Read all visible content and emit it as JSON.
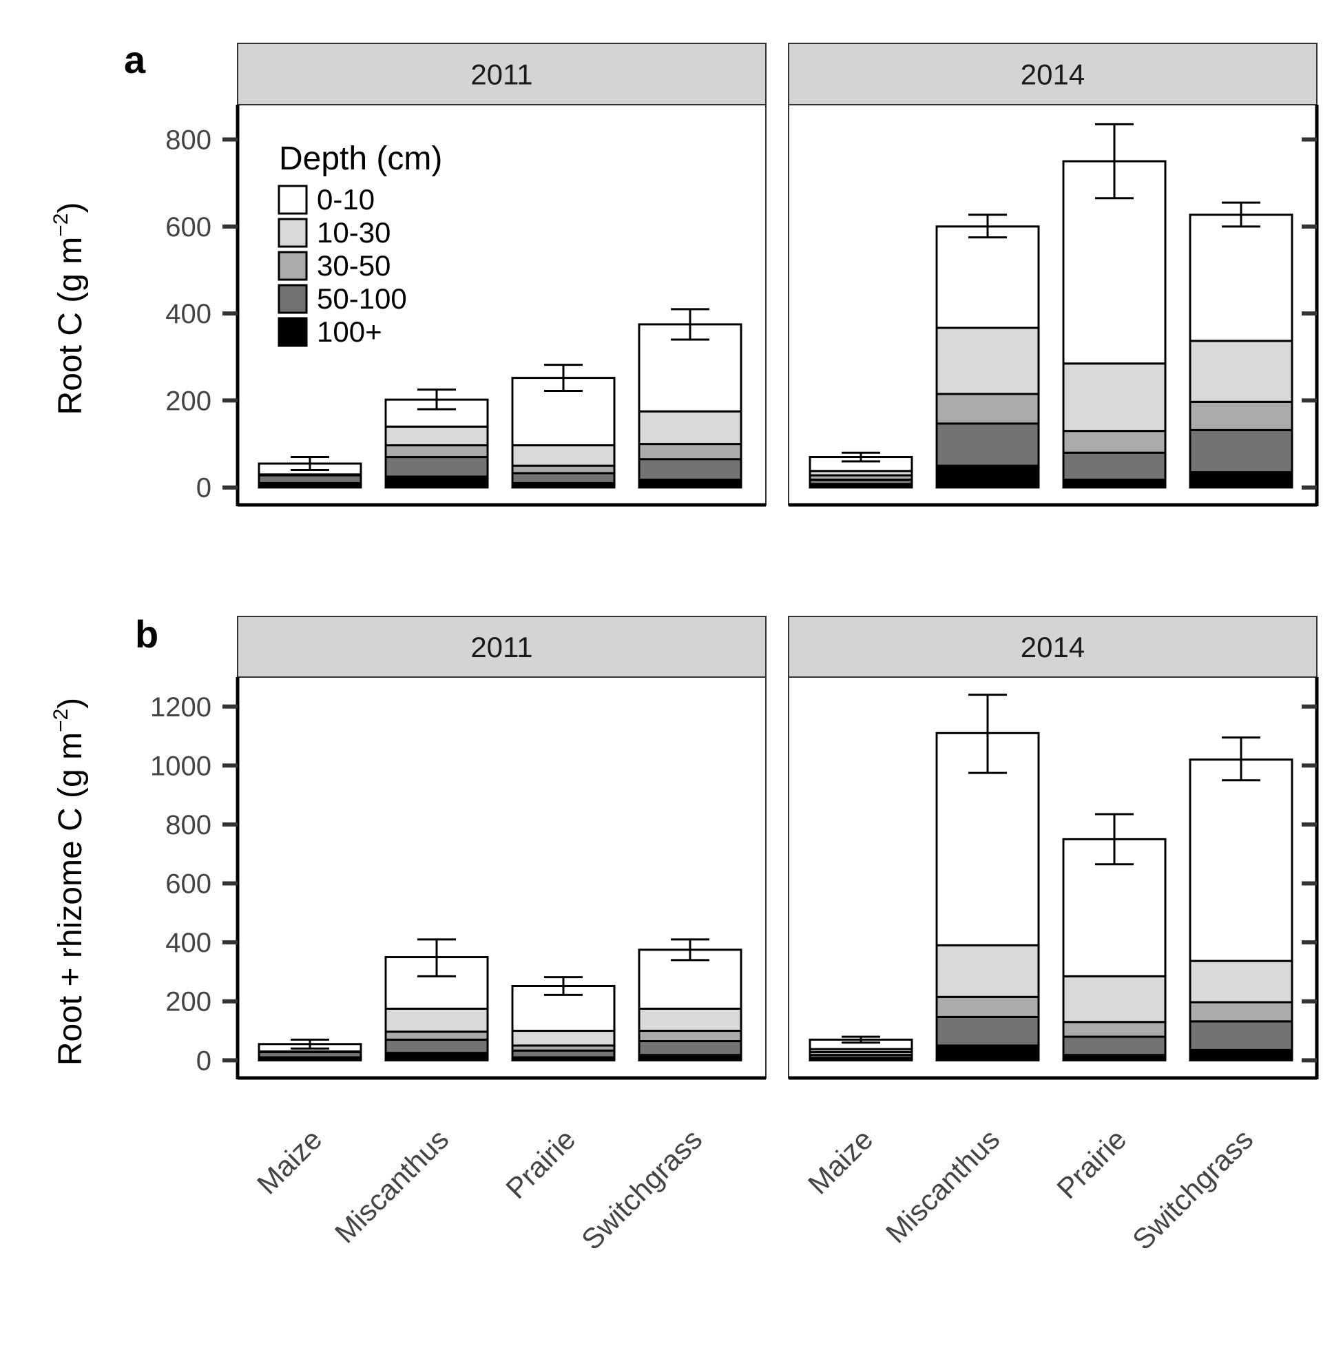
{
  "legend": {
    "title": "Depth (cm)",
    "items": [
      {
        "label": "0-10",
        "color": "#ffffff"
      },
      {
        "label": "10-30",
        "color": "#d9d9d9"
      },
      {
        "label": "30-50",
        "color": "#ababab"
      },
      {
        "label": "50-100",
        "color": "#737373"
      },
      {
        "label": "100+",
        "color": "#000000"
      }
    ],
    "placement": "top-left of panel a 2011"
  },
  "chart_data": [
    {
      "type": "bar",
      "stacked": true,
      "panel_label": "a",
      "ylabel": "Root C (g m",
      "ylabel_sup": "−2",
      "ylabel_close": ")",
      "ylim": [
        -40,
        880
      ],
      "yticks": [
        "0",
        "200",
        "400",
        "600",
        "800"
      ],
      "ytick_values": [
        0,
        200,
        400,
        600,
        800
      ],
      "categories": [
        "Maize",
        "Miscanthus",
        "Prairie",
        "Switchgrass"
      ],
      "facets": [
        {
          "strip": "2011",
          "series": [
            {
              "name": "100+",
              "values": [
                10,
                25,
                10,
                18
              ]
            },
            {
              "name": "50-100",
              "values": [
                18,
                45,
                23,
                47
              ]
            },
            {
              "name": "30-50",
              "values": [
                2,
                27,
                17,
                35
              ]
            },
            {
              "name": "10-30",
              "values": [
                0,
                43,
                47,
                75
              ]
            },
            {
              "name": "0-10",
              "values": [
                25,
                62,
                155,
                200
              ]
            }
          ],
          "totals": [
            55,
            202,
            252,
            375
          ],
          "error_bars": [
            [
              40,
              70
            ],
            [
              180,
              225
            ],
            [
              222,
              282
            ],
            [
              340,
              410
            ]
          ]
        },
        {
          "strip": "2014",
          "series": [
            {
              "name": "100+",
              "values": [
                8,
                50,
                18,
                35
              ]
            },
            {
              "name": "50-100",
              "values": [
                10,
                97,
                62,
                97
              ]
            },
            {
              "name": "30-50",
              "values": [
                10,
                68,
                50,
                65
              ]
            },
            {
              "name": "10-30",
              "values": [
                10,
                152,
                155,
                140
              ]
            },
            {
              "name": "0-10",
              "values": [
                32,
                233,
                465,
                290
              ]
            }
          ],
          "totals": [
            70,
            600,
            750,
            627
          ],
          "error_bars": [
            [
              60,
              80
            ],
            [
              575,
              627
            ],
            [
              665,
              835
            ],
            [
              600,
              655
            ]
          ]
        }
      ]
    },
    {
      "type": "bar",
      "stacked": true,
      "panel_label": "b",
      "ylabel": "Root + rhizome C (g m",
      "ylabel_sup": "−2",
      "ylabel_close": ")",
      "ylim": [
        -60,
        1300
      ],
      "yticks": [
        "0",
        "200",
        "400",
        "600",
        "800",
        "1000",
        "1200"
      ],
      "ytick_values": [
        0,
        200,
        400,
        600,
        800,
        1000,
        1200
      ],
      "categories": [
        "Maize",
        "Miscanthus",
        "Prairie",
        "Switchgrass"
      ],
      "facets": [
        {
          "strip": "2011",
          "series": [
            {
              "name": "100+",
              "values": [
                10,
                25,
                10,
                18
              ]
            },
            {
              "name": "50-100",
              "values": [
                18,
                45,
                23,
                47
              ]
            },
            {
              "name": "30-50",
              "values": [
                2,
                27,
                17,
                35
              ]
            },
            {
              "name": "10-30",
              "values": [
                0,
                78,
                50,
                75
              ]
            },
            {
              "name": "0-10",
              "values": [
                25,
                175,
                152,
                200
              ]
            }
          ],
          "totals": [
            55,
            350,
            252,
            375
          ],
          "error_bars": [
            [
              40,
              70
            ],
            [
              285,
              410
            ],
            [
              222,
              282
            ],
            [
              340,
              410
            ]
          ]
        },
        {
          "strip": "2014",
          "series": [
            {
              "name": "100+",
              "values": [
                8,
                50,
                18,
                35
              ]
            },
            {
              "name": "50-100",
              "values": [
                10,
                97,
                62,
                97
              ]
            },
            {
              "name": "30-50",
              "values": [
                10,
                68,
                50,
                65
              ]
            },
            {
              "name": "10-30",
              "values": [
                10,
                175,
                155,
                140
              ]
            },
            {
              "name": "0-10",
              "values": [
                32,
                720,
                465,
                683
              ]
            }
          ],
          "totals": [
            70,
            1110,
            750,
            1020
          ],
          "error_bars": [
            [
              60,
              80
            ],
            [
              975,
              1240
            ],
            [
              665,
              835
            ],
            [
              950,
              1095
            ]
          ]
        }
      ]
    }
  ]
}
